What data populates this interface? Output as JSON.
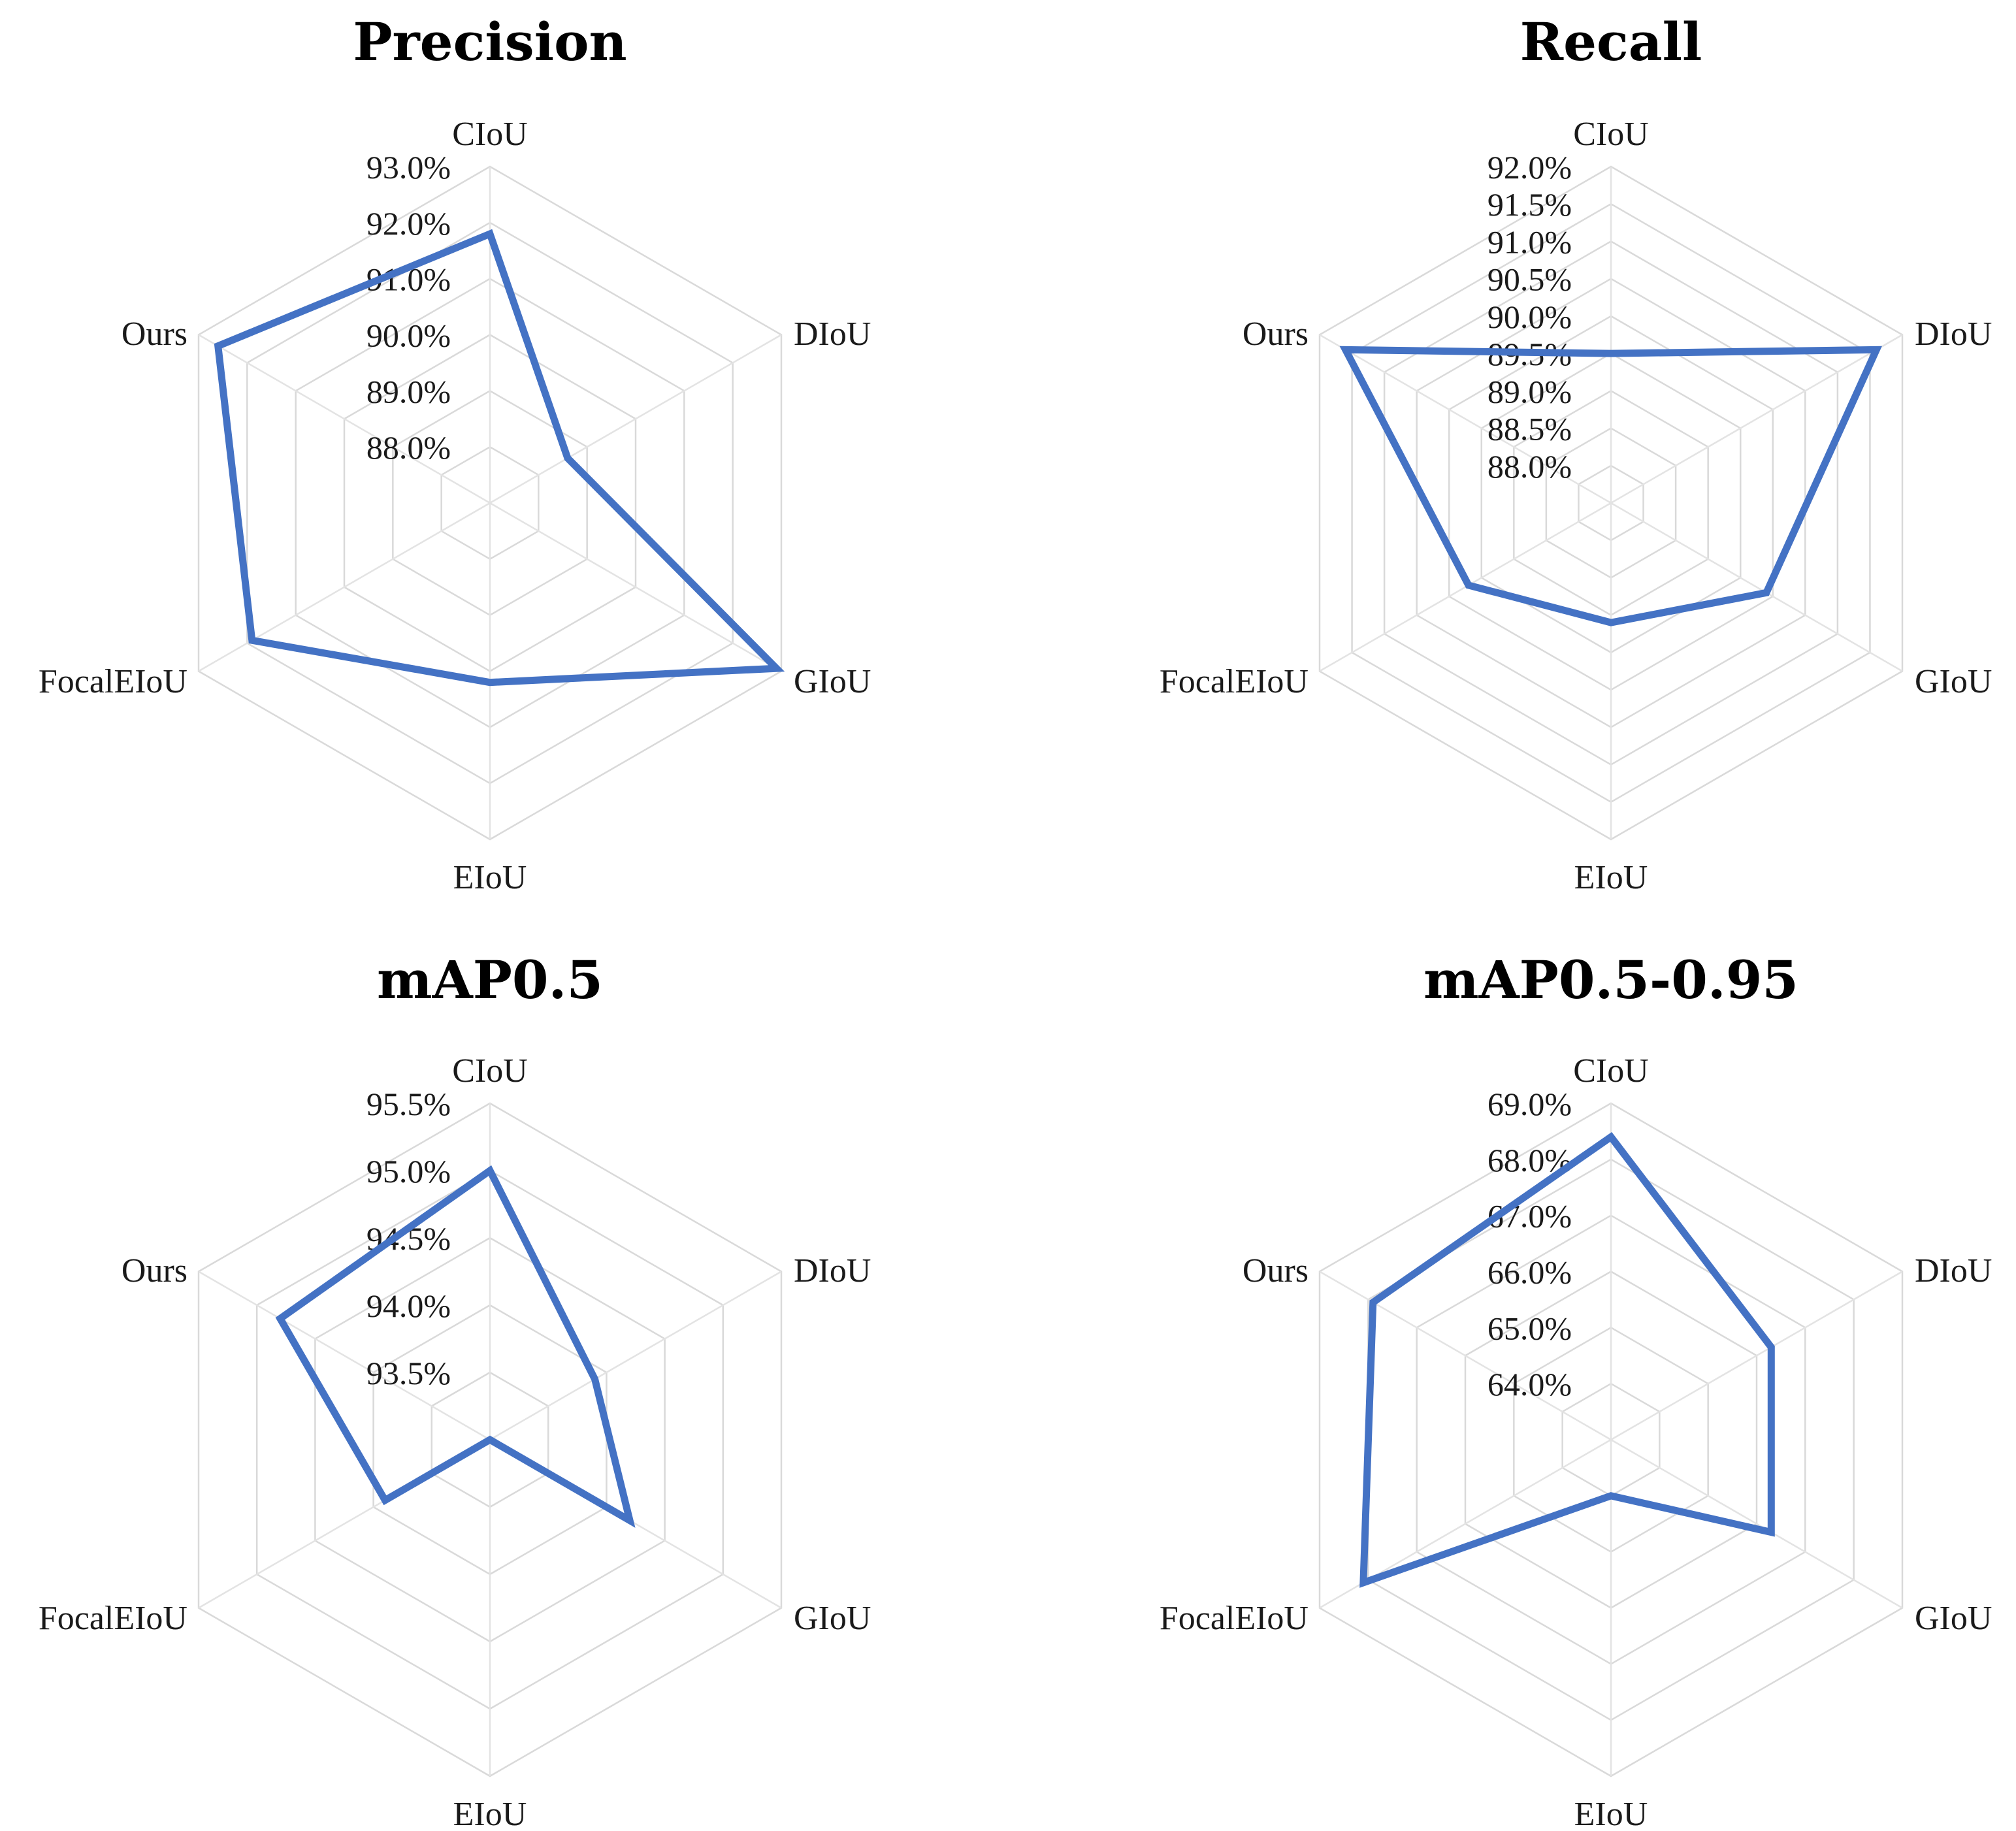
{
  "colors": {
    "series": "#4472C4"
  },
  "chart_data": [
    {
      "type": "radar",
      "title": "Precision",
      "categories": [
        "CIoU",
        "DIoU",
        "GIoU",
        "EIoU",
        "FocalEIoU",
        "Ours"
      ],
      "ticks": [
        "88.0%",
        "89.0%",
        "90.0%",
        "91.0%",
        "92.0%",
        "93.0%"
      ],
      "range": [
        87.0,
        93.0
      ],
      "values": [
        91.8,
        88.6,
        92.9,
        90.2,
        91.9,
        92.6
      ],
      "grid": true
    },
    {
      "type": "radar",
      "title": "Recall",
      "categories": [
        "CIoU",
        "DIoU",
        "GIoU",
        "EIoU",
        "FocalEIoU",
        "Ours"
      ],
      "ticks": [
        "88.0%",
        "88.5%",
        "89.0%",
        "89.5%",
        "90.0%",
        "90.5%",
        "91.0%",
        "91.5%",
        "92.0%"
      ],
      "range": [
        87.5,
        92.0
      ],
      "values": [
        89.5,
        91.6,
        89.9,
        89.1,
        89.7,
        91.6
      ],
      "grid": true
    },
    {
      "type": "radar",
      "title": "mAP0.5",
      "categories": [
        "CIoU",
        "DIoU",
        "GIoU",
        "EIoU",
        "FocalEIoU",
        "Ours"
      ],
      "ticks": [
        "93.5%",
        "94.0%",
        "94.5%",
        "95.0%",
        "95.5%"
      ],
      "range": [
        93.0,
        95.5
      ],
      "values": [
        95.0,
        93.9,
        94.2,
        93.0,
        93.9,
        94.8
      ],
      "grid": true
    },
    {
      "type": "radar",
      "title": "mAP0.5-0.95",
      "categories": [
        "CIoU",
        "DIoU",
        "GIoU",
        "EIoU",
        "FocalEIoU",
        "Ours"
      ],
      "ticks": [
        "64.0%",
        "65.0%",
        "66.0%",
        "67.0%",
        "68.0%",
        "69.0%"
      ],
      "range": [
        63.0,
        69.0
      ],
      "values": [
        68.4,
        66.3,
        66.3,
        64.0,
        68.1,
        67.9
      ],
      "grid": true
    }
  ]
}
